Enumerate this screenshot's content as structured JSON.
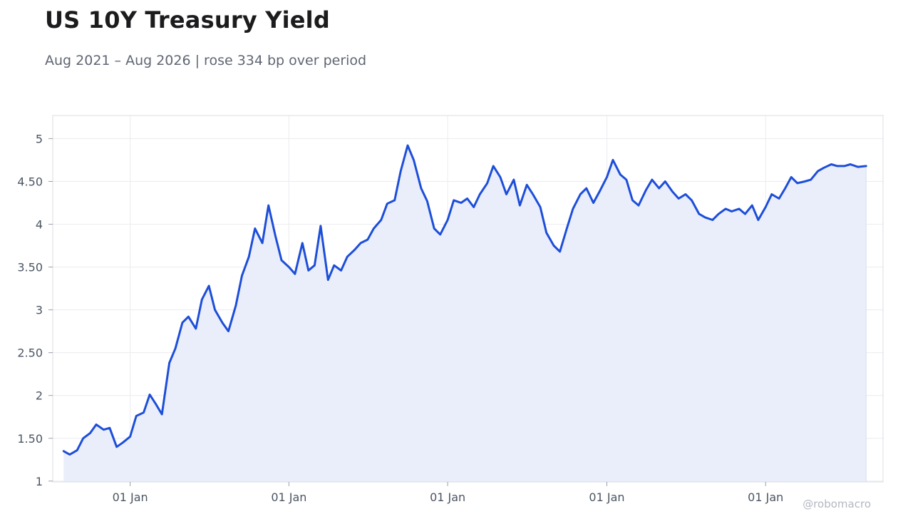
{
  "header": {
    "title": "US 10Y Treasury Yield",
    "subtitle": "Aug 2021 – Aug 2026 | rose 334 bp over period"
  },
  "watermark": "@robomacro",
  "colors": {
    "line": "#1d4ed8",
    "area": "#eaeefb",
    "grid": "#ececf0",
    "axis": "#d9dce2"
  },
  "chart_data": {
    "type": "area",
    "title": "US 10Y Treasury Yield",
    "xlabel": "",
    "ylabel": "",
    "xlim": [
      "2021-07-07",
      "2026-09-28"
    ],
    "ylim": [
      0.99,
      5.27
    ],
    "grid": true,
    "legend": "none",
    "y_ticks": [
      1,
      1.5,
      2,
      2.5,
      3,
      3.5,
      4,
      4.5,
      5
    ],
    "y_tick_labels": [
      "1",
      "1.50",
      "2",
      "2.50",
      "3",
      "3.50",
      "4",
      "4.50",
      "5"
    ],
    "x_ticks": [
      "2022-01-01",
      "2023-01-01",
      "2024-01-01",
      "2025-01-01",
      "2026-01-01"
    ],
    "x_tick_labels": [
      "01 Jan",
      "01 Jan",
      "01 Jan",
      "01 Jan",
      "01 Jan"
    ],
    "series": [
      {
        "x": [
          "2021-08-01",
          "2021-08-15",
          "2021-09-01",
          "2021-09-15",
          "2021-10-01",
          "2021-10-15",
          "2021-11-01",
          "2021-11-15",
          "2021-12-01",
          "2021-12-15",
          "2022-01-01",
          "2022-01-15",
          "2022-02-01",
          "2022-02-15",
          "2022-03-01",
          "2022-03-15",
          "2022-04-01",
          "2022-04-15",
          "2022-05-01",
          "2022-05-15",
          "2022-06-01",
          "2022-06-15",
          "2022-07-01",
          "2022-07-15",
          "2022-08-01",
          "2022-08-15",
          "2022-09-01",
          "2022-09-15",
          "2022-10-01",
          "2022-10-15",
          "2022-11-01",
          "2022-11-15",
          "2022-12-01",
          "2022-12-15",
          "2023-01-01",
          "2023-01-15",
          "2023-02-01",
          "2023-02-15",
          "2023-03-01",
          "2023-03-15",
          "2023-04-01",
          "2023-04-15",
          "2023-05-01",
          "2023-05-15",
          "2023-06-01",
          "2023-06-15",
          "2023-07-01",
          "2023-07-15",
          "2023-08-01",
          "2023-08-15",
          "2023-09-01",
          "2023-09-15",
          "2023-10-01",
          "2023-10-15",
          "2023-11-01",
          "2023-11-15",
          "2023-12-01",
          "2023-12-15",
          "2024-01-01",
          "2024-01-15",
          "2024-02-01",
          "2024-02-15",
          "2024-03-01",
          "2024-03-15",
          "2024-04-01",
          "2024-04-15",
          "2024-05-01",
          "2024-05-15",
          "2024-06-01",
          "2024-06-15",
          "2024-07-01",
          "2024-07-15",
          "2024-08-01",
          "2024-08-15",
          "2024-09-01",
          "2024-09-15",
          "2024-10-01",
          "2024-10-15",
          "2024-11-01",
          "2024-11-15",
          "2024-12-01",
          "2024-12-15",
          "2025-01-01",
          "2025-01-15",
          "2025-02-01",
          "2025-02-15",
          "2025-03-01",
          "2025-03-15",
          "2025-04-01",
          "2025-04-15",
          "2025-05-01",
          "2025-05-15",
          "2025-06-01",
          "2025-06-15",
          "2025-07-01",
          "2025-07-15",
          "2025-08-01",
          "2025-08-15",
          "2025-09-01",
          "2025-09-15",
          "2025-10-01",
          "2025-10-15",
          "2025-11-01",
          "2025-11-15",
          "2025-12-01",
          "2025-12-15",
          "2026-01-01",
          "2026-01-15",
          "2026-02-01",
          "2026-02-15",
          "2026-03-01",
          "2026-03-15",
          "2026-04-01",
          "2026-04-15",
          "2026-05-01",
          "2026-05-15",
          "2026-06-01",
          "2026-06-15",
          "2026-07-01",
          "2026-07-15",
          "2026-08-01",
          "2026-08-20"
        ],
        "values": [
          1.35,
          1.31,
          1.36,
          1.5,
          1.56,
          1.66,
          1.6,
          1.62,
          1.4,
          1.45,
          1.52,
          1.76,
          1.8,
          2.01,
          1.9,
          1.78,
          2.38,
          2.55,
          2.85,
          2.92,
          2.78,
          3.12,
          3.28,
          3.0,
          2.85,
          2.75,
          3.05,
          3.4,
          3.62,
          3.95,
          3.78,
          4.22,
          3.86,
          3.58,
          3.5,
          3.42,
          3.78,
          3.46,
          3.52,
          3.98,
          3.35,
          3.52,
          3.46,
          3.62,
          3.7,
          3.78,
          3.82,
          3.95,
          4.05,
          4.24,
          4.28,
          4.62,
          4.92,
          4.75,
          4.42,
          4.27,
          3.95,
          3.88,
          4.05,
          4.28,
          4.25,
          4.3,
          4.2,
          4.35,
          4.48,
          4.68,
          4.55,
          4.35,
          4.52,
          4.22,
          4.46,
          4.35,
          4.2,
          3.9,
          3.75,
          3.68,
          3.95,
          4.18,
          4.35,
          4.42,
          4.25,
          4.38,
          4.55,
          4.75,
          4.58,
          4.52,
          4.28,
          4.22,
          4.4,
          4.52,
          4.42,
          4.5,
          4.38,
          4.3,
          4.35,
          4.28,
          4.12,
          4.08,
          4.05,
          4.12,
          4.18,
          4.15,
          4.18,
          4.12,
          4.22,
          4.05,
          4.2,
          4.35,
          4.3,
          4.42,
          4.55,
          4.48,
          4.5,
          4.52,
          4.62,
          4.66,
          4.7,
          4.68,
          4.68,
          4.7,
          4.67,
          4.68
        ]
      }
    ]
  }
}
